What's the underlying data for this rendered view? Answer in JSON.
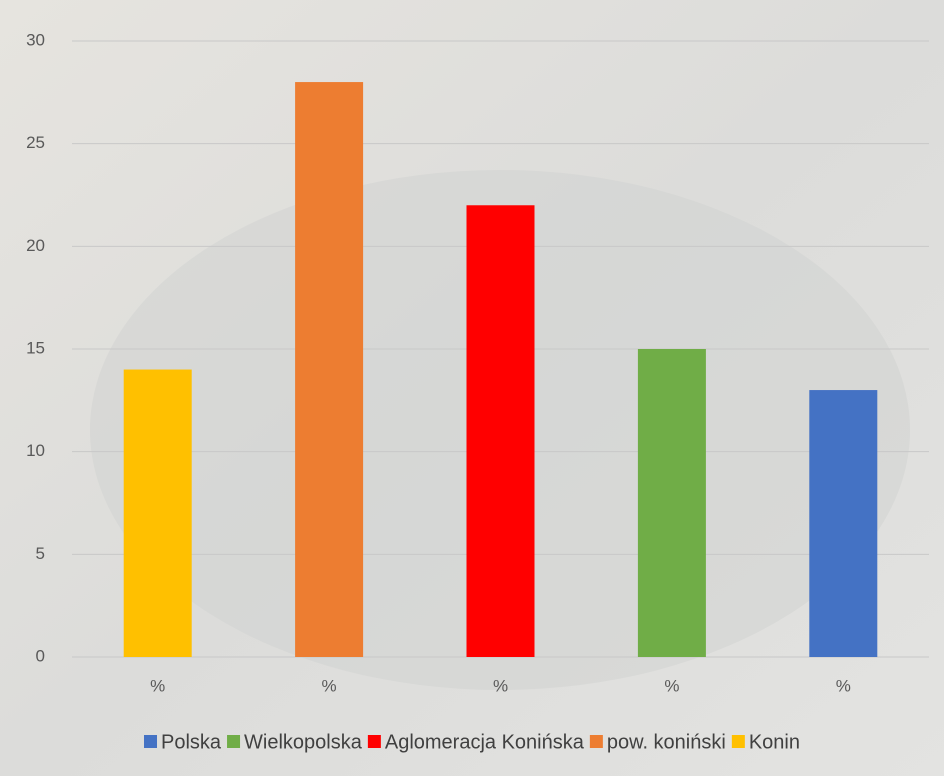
{
  "chart_data": {
    "type": "bar",
    "categories": [
      "%",
      "%",
      "%",
      "%",
      "%"
    ],
    "series": [
      {
        "name": "Polska",
        "color": "#4472c4",
        "values": [
          null,
          null,
          null,
          null,
          13
        ]
      },
      {
        "name": "Wielkopolska",
        "color": "#70ad47",
        "values": [
          null,
          null,
          null,
          15,
          null
        ]
      },
      {
        "name": "Aglomeracja Konińska",
        "color": "#ff0000",
        "values": [
          null,
          null,
          22,
          null,
          null
        ]
      },
      {
        "name": "pow. koniński",
        "color": "#ed7d31",
        "values": [
          null,
          28,
          null,
          null,
          null
        ]
      },
      {
        "name": "Konin",
        "color": "#ffc000",
        "values": [
          14,
          null,
          null,
          null,
          null
        ]
      }
    ],
    "ylim": [
      0,
      30
    ],
    "yticks": [
      0,
      5,
      10,
      15,
      20,
      25,
      30
    ],
    "grid": true
  }
}
